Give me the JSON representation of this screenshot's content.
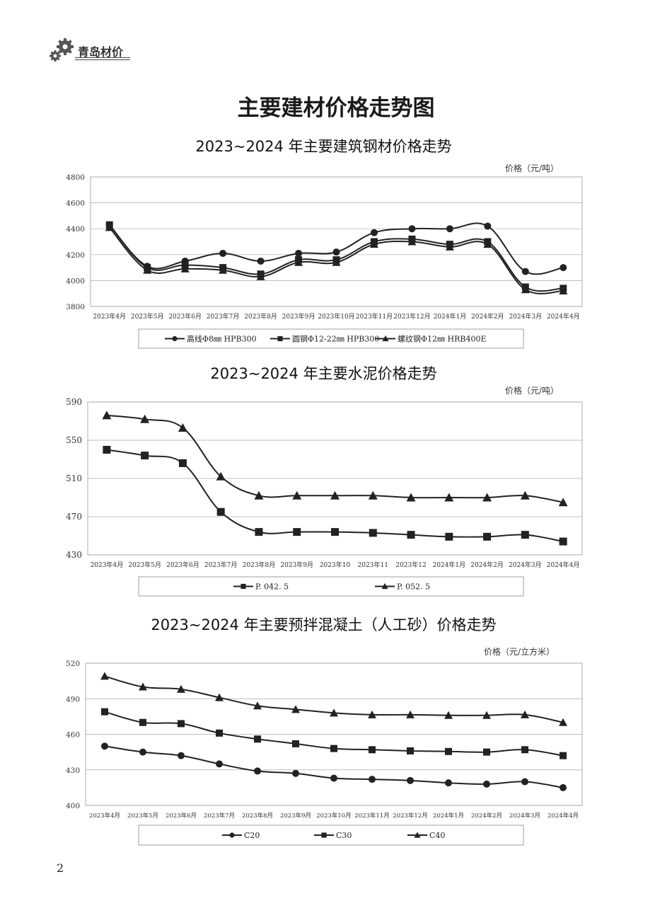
{
  "header": {
    "brand": "青岛材价",
    "logo_icon": "gear-icon"
  },
  "page": {
    "title": "主要建材价格走势图",
    "page_number": "2"
  },
  "chart_data": [
    {
      "type": "line",
      "title": "2023~2024 年主要建筑钢材价格走势",
      "unit": "价格（元/吨）",
      "ylim": [
        3800,
        4800
      ],
      "yticks": [
        3800,
        4000,
        4200,
        4400,
        4600,
        4800
      ],
      "grid": true,
      "legend": "bottom",
      "categories": [
        "2023年4月",
        "2023年5月",
        "2023年6月",
        "2023年7月",
        "2023年8月",
        "2023年9月",
        "2023年10月",
        "2023年11月",
        "2023年12月",
        "2024年1月",
        "2024年2月",
        "2024年3月",
        "2024年4月"
      ],
      "series": [
        {
          "name": "高线Φ8㎜ HPB300",
          "marker": "circle",
          "values": [
            4430,
            4110,
            4150,
            4210,
            4150,
            4210,
            4220,
            4370,
            4400,
            4400,
            4420,
            4070,
            4100
          ]
        },
        {
          "name": "圆钢Φ12-22㎜ HPB300",
          "marker": "square",
          "values": [
            4430,
            4100,
            4120,
            4100,
            4050,
            4160,
            4160,
            4300,
            4320,
            4280,
            4300,
            3950,
            3940
          ]
        },
        {
          "name": "螺纹钢Φ12㎜ HRB400E",
          "marker": "triangle",
          "values": [
            4410,
            4080,
            4090,
            4080,
            4030,
            4140,
            4140,
            4280,
            4300,
            4260,
            4280,
            3930,
            3920
          ]
        }
      ]
    },
    {
      "type": "line",
      "title": "2023~2024 年主要水泥价格走势",
      "unit": "价格（元/吨）",
      "ylim": [
        430,
        590
      ],
      "yticks": [
        430,
        470,
        510,
        550,
        590
      ],
      "grid": true,
      "legend": "bottom",
      "categories": [
        "2023年4月",
        "2023年5月",
        "2023年6月",
        "2023年7月",
        "2023年8月",
        "2023年9月",
        "2023年10",
        "2023年11",
        "2023年12",
        "2024年1月",
        "2024年2月",
        "2024年3月",
        "2024年4月"
      ],
      "series": [
        {
          "name": "P. 042. 5",
          "marker": "square",
          "values": [
            540,
            534,
            526,
            475,
            454,
            454,
            454,
            453,
            451,
            449,
            449,
            451,
            444
          ]
        },
        {
          "name": "P. 052. 5",
          "marker": "triangle",
          "values": [
            576,
            572,
            563,
            512,
            492,
            492,
            492,
            492,
            490,
            490,
            490,
            492,
            485
          ]
        }
      ]
    },
    {
      "type": "line",
      "title": "2023~2024 年主要预拌混凝土（人工砂）价格走势",
      "unit": "价格（元/立方米）",
      "ylim": [
        400,
        520
      ],
      "yticks": [
        400,
        430,
        460,
        490,
        520
      ],
      "grid": true,
      "legend": "bottom",
      "categories": [
        "2023年4月",
        "2023年5月",
        "2023年6月",
        "2023年7月",
        "2023年8月",
        "2023年9月",
        "2023年10月",
        "2023年11月",
        "2023年12月",
        "2024年1月",
        "2024年2月",
        "2024年3月",
        "2024年4月"
      ],
      "series": [
        {
          "name": "C20",
          "marker": "circle",
          "values": [
            450,
            445,
            442,
            435,
            429,
            427,
            423,
            422,
            421,
            419,
            418,
            420,
            415
          ]
        },
        {
          "name": "C30",
          "marker": "square",
          "values": [
            479,
            470,
            469,
            461,
            456,
            452,
            448,
            447,
            446,
            445.5,
            445,
            447,
            442
          ]
        },
        {
          "name": "C40",
          "marker": "triangle",
          "values": [
            509,
            500,
            498,
            491,
            484,
            481,
            478,
            476.5,
            476.5,
            476,
            476,
            476.5,
            470
          ]
        }
      ]
    }
  ]
}
